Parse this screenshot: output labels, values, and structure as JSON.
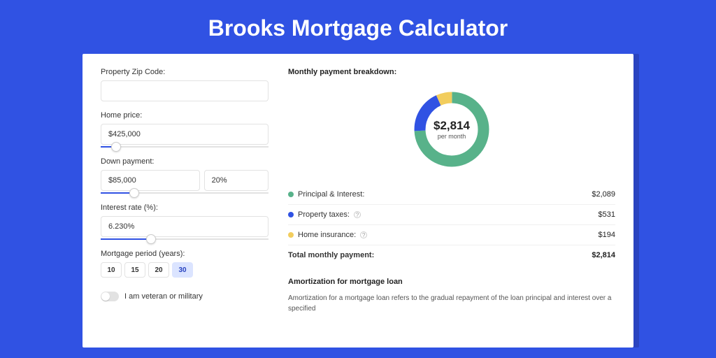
{
  "colors": {
    "page_bg": "#3052e3",
    "card_bg": "#ffffff",
    "accent": "#3052e3",
    "text": "#333333",
    "border": "#e2e2e2",
    "row_border": "#f0f0f0"
  },
  "title": "Brooks Mortgage Calculator",
  "form": {
    "zip": {
      "label": "Property Zip Code:",
      "value": ""
    },
    "home_price": {
      "label": "Home price:",
      "value": "$425,000",
      "slider_pct": 9
    },
    "down_payment": {
      "label": "Down payment:",
      "amount": "$85,000",
      "pct": "20%",
      "slider_pct": 20
    },
    "interest_rate": {
      "label": "Interest rate (%):",
      "value": "6.230%",
      "slider_pct": 30
    },
    "period": {
      "label": "Mortgage period (years):",
      "options": [
        "10",
        "15",
        "20",
        "30"
      ],
      "selected_index": 3
    },
    "veteran": {
      "label": "I am veteran or military",
      "on": false
    }
  },
  "breakdown": {
    "title": "Monthly payment breakdown:",
    "donut": {
      "center_amount": "$2,814",
      "center_sub": "per month",
      "slices": [
        {
          "label": "Principal & Interest:",
          "value": "$2,089",
          "pct": 74.2,
          "color": "#58b28a",
          "info": false
        },
        {
          "label": "Property taxes:",
          "value": "$531",
          "pct": 18.9,
          "color": "#3052e3",
          "info": true
        },
        {
          "label": "Home insurance:",
          "value": "$194",
          "pct": 6.9,
          "color": "#f2cd5d",
          "info": true
        }
      ],
      "stroke_width": 16,
      "bg": "#ffffff"
    },
    "total_label": "Total monthly payment:",
    "total_value": "$2,814"
  },
  "amortization": {
    "title": "Amortization for mortgage loan",
    "text": "Amortization for a mortgage loan refers to the gradual repayment of the loan principal and interest over a specified"
  }
}
